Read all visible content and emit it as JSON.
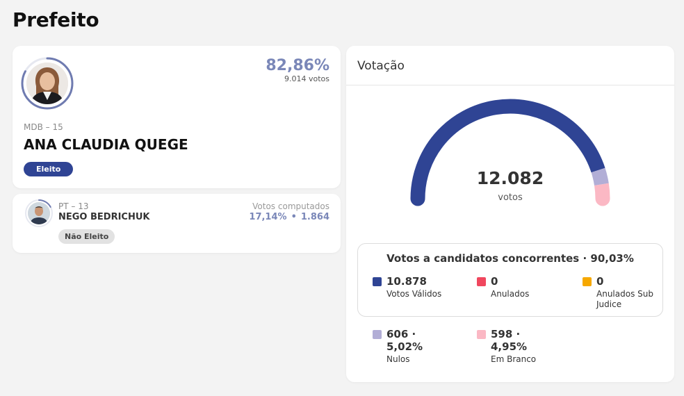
{
  "page": {
    "title": "Prefeito"
  },
  "winner": {
    "percent": "82,86%",
    "votes": "9.014 votos",
    "party": "MDB – 15",
    "name": "ANA CLAUDIA QUEGE",
    "status": "Eleito",
    "vote_share": 0.8286
  },
  "runner_up": {
    "party": "PT – 13",
    "name": "NEGO BEDRICHUK",
    "votes_label": "Votos computados",
    "percent": "17,14%",
    "separator": "•",
    "votes": "1.864",
    "status": "Não Eleito",
    "vote_share": 0.1714
  },
  "voting": {
    "title": "Votação",
    "total": "12.082",
    "total_caption": "votos",
    "summary_title": "Votos a candidatos concorrentes · 90,03%",
    "legend": [
      {
        "value": "10.878",
        "label": "Votos Válidos",
        "color": "#2f4494",
        "count": 10878
      },
      {
        "value": "0",
        "label": "Anulados",
        "color": "#f0475e",
        "count": 0
      },
      {
        "value": "0",
        "label": "Anulados Sub Judice",
        "color": "#f6a800",
        "count": 0
      },
      {
        "value": "606 · 5,02%",
        "label": "Nulos",
        "color": "#b2aed6",
        "count": 606
      },
      {
        "value": "598 · 4,95%",
        "label": "Em Branco",
        "color": "#fbb8c4",
        "count": 598
      }
    ]
  },
  "colors": {
    "accent": "#2f4494",
    "percent_text": "#7a87b8",
    "ring": "#6f7bb0"
  }
}
